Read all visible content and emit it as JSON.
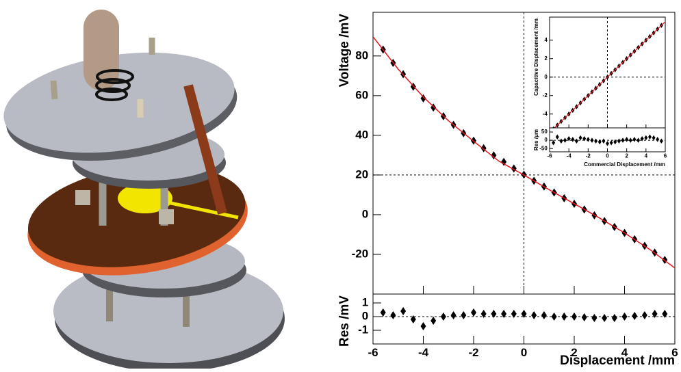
{
  "chart_data": [
    {
      "type": "scatter",
      "ylabel": "Voltage /mV",
      "xlim": [
        -6,
        6
      ],
      "xticks": [
        -6,
        -4,
        -2,
        0,
        2,
        4,
        6
      ],
      "xtick_labels": false,
      "ylim": [
        -40,
        102
      ],
      "yticks": [
        -20,
        0,
        20,
        40,
        60,
        80
      ],
      "hlines": [
        20
      ],
      "vlines": [
        0
      ],
      "series": [
        {
          "style": "points",
          "color": "#000000",
          "x": [
            -5.6,
            -5.2,
            -4.8,
            -4.4,
            -4.0,
            -3.6,
            -3.2,
            -2.8,
            -2.4,
            -2.0,
            -1.6,
            -1.2,
            -0.8,
            -0.4,
            0,
            0.4,
            0.8,
            1.2,
            1.6,
            2.0,
            2.4,
            2.8,
            3.2,
            3.6,
            4.0,
            4.4,
            4.8,
            5.2,
            5.6
          ],
          "values": [
            83.2,
            76.5,
            70.8,
            64.5,
            58.6,
            54.0,
            49.6,
            45.3,
            41.1,
            37.3,
            33.5,
            29.9,
            26.6,
            23.3,
            20.2,
            17.1,
            14.2,
            11.2,
            8.3,
            5.5,
            2.6,
            -0.3,
            -3.2,
            -6.2,
            -9.2,
            -12.4,
            -15.7,
            -19.1,
            -22.8
          ]
        },
        {
          "style": "line",
          "color": "#e8121a",
          "x": [
            -6,
            -5,
            -4,
            -3,
            -2,
            -1,
            0,
            1,
            2,
            3,
            4,
            5,
            6
          ],
          "values": [
            89.7,
            73.35,
            59.33,
            47.34,
            37.02,
            27.02,
            20,
            12.61,
            5.52,
            -1.64,
            -9.19,
            -17.49,
            -26.88
          ]
        }
      ]
    },
    {
      "type": "scatter",
      "ylabel": "Res /mV",
      "xlabel": "Displacement /mm",
      "xlim": [
        -6,
        6
      ],
      "xticks": [
        -6,
        -4,
        -2,
        0,
        2,
        4,
        6
      ],
      "xtick_labels": true,
      "ylim": [
        -2,
        1.65
      ],
      "yticks": [
        -1,
        0,
        1
      ],
      "hlines": [
        0
      ],
      "series": [
        {
          "style": "points",
          "color": "#000000",
          "x": [
            -5.6,
            -5.2,
            -4.8,
            -4.4,
            -4.0,
            -3.6,
            -3.2,
            -2.8,
            -2.4,
            -2.0,
            -1.6,
            -1.2,
            -0.8,
            -0.4,
            0,
            0.4,
            0.8,
            1.2,
            1.6,
            2.0,
            2.4,
            2.8,
            3.2,
            3.6,
            4.0,
            4.4,
            4.8,
            5.2,
            5.6
          ],
          "values": [
            0.3,
            0.1,
            0.4,
            -0.2,
            -0.7,
            -0.3,
            0,
            0.1,
            0.1,
            0.3,
            0.2,
            0.2,
            0.2,
            0.2,
            0.2,
            0.1,
            0.1,
            0,
            0,
            0,
            -0.05,
            -0.1,
            -0.1,
            -0.1,
            0,
            0.05,
            0.1,
            0.2,
            0.2
          ]
        }
      ]
    },
    {
      "type": "scatter",
      "ylabel": "Capacitive Displacement /mm",
      "xlim": [
        -6,
        6
      ],
      "xticks": [
        -6,
        -4,
        -2,
        0,
        2,
        4,
        6
      ],
      "xtick_labels": false,
      "ylim": [
        -5.5,
        6.5
      ],
      "yticks": [
        -4,
        -2,
        0,
        2,
        4
      ],
      "hlines": [
        0
      ],
      "vlines": [
        0
      ],
      "series": [
        {
          "style": "points",
          "color": "#000000",
          "x": [
            -5.6,
            -5.2,
            -4.8,
            -4.4,
            -4.0,
            -3.6,
            -3.2,
            -2.8,
            -2.4,
            -2.0,
            -1.6,
            -1.2,
            -0.8,
            -0.4,
            0,
            0.4,
            0.8,
            1.2,
            1.6,
            2.0,
            2.4,
            2.8,
            3.2,
            3.6,
            4.0,
            4.4,
            4.8,
            5.2,
            5.6
          ],
          "values": [
            -5.6,
            -5.2,
            -4.8,
            -4.4,
            -4.0,
            -3.6,
            -3.2,
            -2.8,
            -2.4,
            -2.0,
            -1.6,
            -1.2,
            -0.8,
            -0.4,
            0,
            0.4,
            0.8,
            1.2,
            1.6,
            2.0,
            2.4,
            2.8,
            3.2,
            3.6,
            4.0,
            4.4,
            4.8,
            5.2,
            5.6
          ]
        },
        {
          "style": "line",
          "color": "#e8121a",
          "x": [
            -6,
            6
          ],
          "values": [
            -6,
            6
          ]
        }
      ]
    },
    {
      "type": "scatter",
      "ylabel": "Res /μm",
      "xlabel": "Commercial Displacement /mm",
      "xlim": [
        -6,
        6
      ],
      "xticks": [
        -6,
        -4,
        -2,
        0,
        2,
        4,
        6
      ],
      "xtick_labels": true,
      "ylim": [
        -70,
        75
      ],
      "yticks": [
        -50,
        0,
        50
      ],
      "hlines": [
        0
      ],
      "series": [
        {
          "style": "points",
          "color": "#000000",
          "x": [
            -5.6,
            -5.2,
            -4.8,
            -4.4,
            -4.0,
            -3.6,
            -3.2,
            -2.8,
            -2.4,
            -2.0,
            -1.6,
            -1.2,
            -0.8,
            -0.4,
            0,
            0.4,
            0.8,
            1.2,
            1.6,
            2.0,
            2.4,
            2.8,
            3.2,
            3.6,
            4.0,
            4.4,
            4.8,
            5.2,
            5.6
          ],
          "values": [
            -15,
            20,
            -5,
            0,
            10,
            5,
            -5,
            15,
            10,
            5,
            0,
            -5,
            -10,
            -5,
            -20,
            -15,
            -10,
            -5,
            0,
            5,
            0,
            5,
            0,
            10,
            15,
            20,
            15,
            5,
            -5
          ]
        }
      ]
    }
  ]
}
